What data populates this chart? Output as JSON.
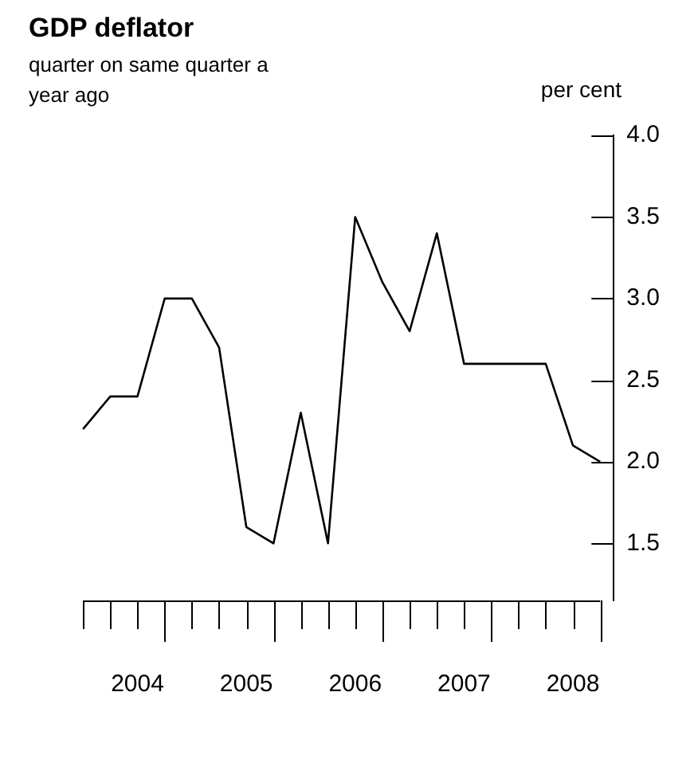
{
  "chart_data": {
    "type": "line",
    "title": "GDP deflator",
    "subtitle": "quarter on same quarter a year ago",
    "ylabel": "per cent",
    "categories": [
      null,
      null,
      "2004",
      null,
      null,
      null,
      "2005",
      null,
      null,
      null,
      "2006",
      null,
      null,
      null,
      "2007",
      null,
      null,
      null,
      "2008",
      null
    ],
    "series": [
      {
        "color": "#000000",
        "values": [
          2.2,
          2.4,
          2.4,
          3.0,
          3.0,
          2.7,
          1.6,
          1.5,
          2.3,
          1.5,
          3.5,
          3.1,
          2.8,
          3.4,
          2.6,
          2.6,
          2.6,
          2.6,
          2.1,
          2.0
        ]
      }
    ],
    "ylim": [
      1.15,
      4.0
    ],
    "yticks": [
      {
        "value": 1.5,
        "label": "1.5"
      },
      {
        "value": 2,
        "label": "2.0"
      },
      {
        "value": 2.5,
        "label": "2.5"
      },
      {
        "value": 3,
        "label": "3.0"
      },
      {
        "value": 3.5,
        "label": "3.5"
      },
      {
        "value": 4,
        "label": "4.0"
      }
    ],
    "grid": false,
    "legend": false,
    "marker": "none",
    "line_style": "solid"
  }
}
